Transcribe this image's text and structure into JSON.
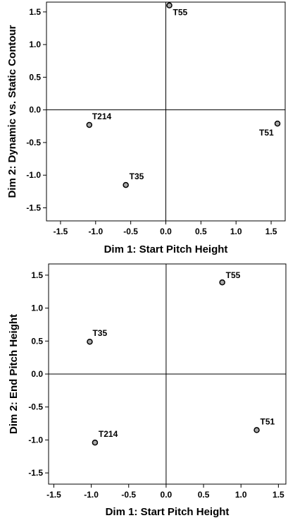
{
  "chart_data": [
    {
      "type": "scatter",
      "xlabel": "Dim 1: Start Pitch Height",
      "ylabel": "Dim 2: Dynamic vs. Static Contour",
      "xlim": [
        -1.7,
        1.7
      ],
      "ylim": [
        -1.7,
        1.65
      ],
      "xticks": [
        "-1.5",
        "-1.0",
        "-0.5",
        "0.0",
        "0.5",
        "1.0",
        "1.5"
      ],
      "yticks": [
        "1.5",
        "1.0",
        "0.5",
        "0.0",
        "-0.5",
        "-1.0",
        "-1.5"
      ],
      "reference_lines": {
        "x": 0.0,
        "y": 0.0
      },
      "grid": false,
      "points": [
        {
          "label": "T55",
          "x": 0.05,
          "y": 1.6
        },
        {
          "label": "T214",
          "x": -1.09,
          "y": -0.23
        },
        {
          "label": "T51",
          "x": 1.59,
          "y": -0.21
        },
        {
          "label": "T35",
          "x": -0.57,
          "y": -1.15
        }
      ]
    },
    {
      "type": "scatter",
      "xlabel": "Dim 1: Start Pitch Height",
      "ylabel": "Dim 2: End Pitch Height",
      "xlim": [
        -1.57,
        1.6
      ],
      "ylim": [
        -1.67,
        1.67
      ],
      "xticks": [
        "-1.5",
        "-1.0",
        "-0.5",
        "0.0",
        "0.5",
        "1.0",
        "1.5"
      ],
      "yticks": [
        "1.5",
        "1.0",
        "0.5",
        "0.0",
        "-0.5",
        "-1.0",
        "-1.5"
      ],
      "reference_lines": {
        "x": 0.0,
        "y": 0.0
      },
      "grid": false,
      "points": [
        {
          "label": "T55",
          "x": 0.75,
          "y": 1.39
        },
        {
          "label": "T35",
          "x": -1.02,
          "y": 0.49
        },
        {
          "label": "T51",
          "x": 1.21,
          "y": -0.85
        },
        {
          "label": "T214",
          "x": -0.95,
          "y": -1.04
        }
      ]
    }
  ]
}
